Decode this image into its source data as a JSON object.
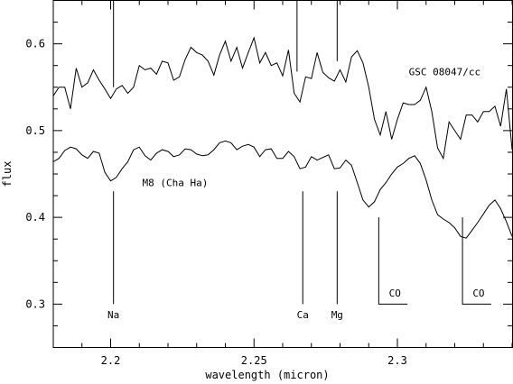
{
  "chart_data": {
    "type": "line",
    "title": "",
    "xlabel": "wavelength (micron)",
    "ylabel": "flux",
    "xlim": [
      2.18,
      2.34
    ],
    "ylim": [
      0.25,
      0.65
    ],
    "grid": false,
    "x_ticks": [
      {
        "value": 2.2,
        "label": "2.2"
      },
      {
        "value": 2.25,
        "label": "2.25"
      },
      {
        "value": 2.3,
        "label": "2.3"
      }
    ],
    "y_ticks": [
      {
        "value": 0.3,
        "label": "0.3"
      },
      {
        "value": 0.4,
        "label": "0.4"
      },
      {
        "value": 0.5,
        "label": "0.5"
      },
      {
        "value": 0.6,
        "label": "0.6"
      }
    ],
    "series": [
      {
        "name": "GSC 08047/cc",
        "x": [
          2.18,
          2.182,
          2.184,
          2.186,
          2.188,
          2.19,
          2.192,
          2.194,
          2.196,
          2.198,
          2.2,
          2.202,
          2.204,
          2.206,
          2.208,
          2.21,
          2.212,
          2.214,
          2.216,
          2.218,
          2.22,
          2.222,
          2.224,
          2.226,
          2.228,
          2.23,
          2.232,
          2.234,
          2.236,
          2.238,
          2.24,
          2.242,
          2.244,
          2.246,
          2.248,
          2.25,
          2.252,
          2.254,
          2.256,
          2.258,
          2.26,
          2.262,
          2.264,
          2.266,
          2.268,
          2.27,
          2.272,
          2.274,
          2.276,
          2.278,
          2.28,
          2.282,
          2.284,
          2.286,
          2.288,
          2.29,
          2.292,
          2.294,
          2.296,
          2.298,
          2.3,
          2.302,
          2.304,
          2.306,
          2.308,
          2.31,
          2.312,
          2.314,
          2.316,
          2.318,
          2.32,
          2.322,
          2.324,
          2.326,
          2.328,
          2.33,
          2.332,
          2.334,
          2.336,
          2.338,
          2.34
        ],
        "y": [
          0.54,
          0.55,
          0.55,
          0.525,
          0.572,
          0.55,
          0.555,
          0.57,
          0.558,
          0.548,
          0.537,
          0.548,
          0.552,
          0.543,
          0.55,
          0.575,
          0.57,
          0.572,
          0.565,
          0.58,
          0.578,
          0.558,
          0.562,
          0.582,
          0.596,
          0.59,
          0.587,
          0.58,
          0.564,
          0.587,
          0.603,
          0.58,
          0.596,
          0.572,
          0.59,
          0.607,
          0.578,
          0.59,
          0.575,
          0.578,
          0.563,
          0.593,
          0.543,
          0.533,
          0.562,
          0.56,
          0.59,
          0.567,
          0.561,
          0.557,
          0.57,
          0.556,
          0.585,
          0.592,
          0.578,
          0.55,
          0.513,
          0.495,
          0.522,
          0.49,
          0.513,
          0.532,
          0.53,
          0.53,
          0.535,
          0.55,
          0.522,
          0.48,
          0.468,
          0.51,
          0.5,
          0.49,
          0.518,
          0.518,
          0.51,
          0.522,
          0.522,
          0.528,
          0.505,
          0.548,
          0.478
        ]
      },
      {
        "name": "M8 (Cha Ha)",
        "x": [
          2.18,
          2.182,
          2.184,
          2.186,
          2.188,
          2.19,
          2.192,
          2.194,
          2.196,
          2.198,
          2.2,
          2.202,
          2.204,
          2.206,
          2.208,
          2.21,
          2.212,
          2.214,
          2.216,
          2.218,
          2.22,
          2.222,
          2.224,
          2.226,
          2.228,
          2.23,
          2.232,
          2.234,
          2.236,
          2.238,
          2.24,
          2.242,
          2.244,
          2.246,
          2.248,
          2.25,
          2.252,
          2.254,
          2.256,
          2.258,
          2.26,
          2.262,
          2.264,
          2.266,
          2.268,
          2.27,
          2.272,
          2.274,
          2.276,
          2.278,
          2.28,
          2.282,
          2.284,
          2.286,
          2.288,
          2.29,
          2.292,
          2.294,
          2.296,
          2.298,
          2.3,
          2.302,
          2.304,
          2.306,
          2.308,
          2.31,
          2.312,
          2.314,
          2.316,
          2.318,
          2.32,
          2.322,
          2.324,
          2.326,
          2.328,
          2.33,
          2.332,
          2.334,
          2.336,
          2.338,
          2.34
        ],
        "y": [
          0.464,
          0.468,
          0.477,
          0.481,
          0.479,
          0.472,
          0.468,
          0.476,
          0.474,
          0.452,
          0.442,
          0.446,
          0.456,
          0.464,
          0.478,
          0.481,
          0.471,
          0.466,
          0.474,
          0.478,
          0.476,
          0.47,
          0.472,
          0.479,
          0.478,
          0.473,
          0.471,
          0.472,
          0.478,
          0.486,
          0.488,
          0.486,
          0.478,
          0.482,
          0.484,
          0.481,
          0.47,
          0.478,
          0.479,
          0.468,
          0.468,
          0.476,
          0.47,
          0.456,
          0.458,
          0.47,
          0.466,
          0.469,
          0.472,
          0.456,
          0.457,
          0.466,
          0.46,
          0.44,
          0.42,
          0.412,
          0.418,
          0.432,
          0.44,
          0.45,
          0.458,
          0.462,
          0.468,
          0.471,
          0.462,
          0.443,
          0.42,
          0.403,
          0.398,
          0.394,
          0.388,
          0.378,
          0.376,
          0.385,
          0.394,
          0.404,
          0.414,
          0.42,
          0.41,
          0.395,
          0.378
        ]
      }
    ],
    "line_markers": [
      {
        "label": "Na",
        "x": 2.201,
        "y_top": 0.43,
        "y_bottom": 0.3,
        "label_y": 0.288
      },
      {
        "label": "Ca",
        "x": 2.267,
        "y_top": 0.43,
        "y_bottom": 0.3,
        "label_y": 0.288
      },
      {
        "label": "Mg",
        "x": 2.279,
        "y_top": 0.43,
        "y_bottom": 0.3,
        "label_y": 0.288
      }
    ],
    "upper_markers": [
      {
        "x": 2.201,
        "y_top": 0.65,
        "y_bottom": 0.55
      },
      {
        "x": 2.265,
        "y_top": 0.65,
        "y_bottom": 0.568
      },
      {
        "x": 2.279,
        "y_top": 0.65,
        "y_bottom": 0.58
      }
    ],
    "bandheads": [
      {
        "label": "CO",
        "x": 2.2935,
        "y_top": 0.4,
        "y_bottom": 0.3,
        "x_end": 2.3035,
        "label_y": 0.313
      },
      {
        "label": "CO",
        "x": 2.3227,
        "y_top": 0.4,
        "y_bottom": 0.3,
        "x_end": 2.3327,
        "label_y": 0.313
      }
    ],
    "series_labels": [
      {
        "text": "GSC 08047/cc",
        "x": 2.3165,
        "y": 0.568
      },
      {
        "text": "M8 (Cha Ha)",
        "x": 2.2225,
        "y": 0.44
      }
    ]
  }
}
